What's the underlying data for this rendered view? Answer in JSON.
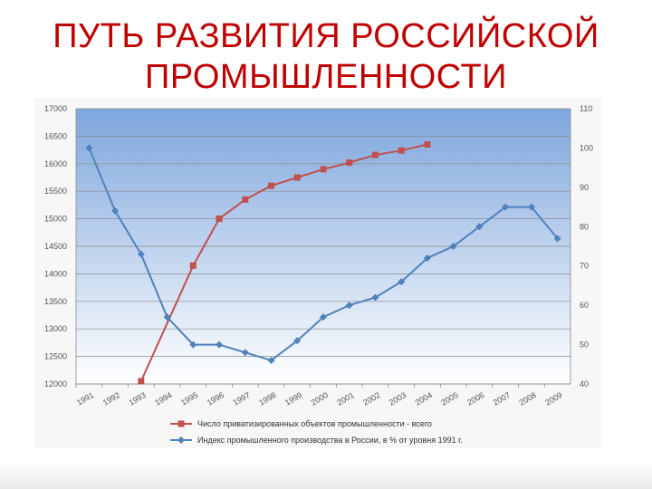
{
  "slide": {
    "title_line1": "ПУТЬ РАЗВИТИЯ РОССИЙСКОЙ",
    "title_line2": "ПРОМЫШЛЕННОСТИ"
  },
  "chart_data": {
    "type": "line",
    "title": "",
    "xlabel": "",
    "ylabel": "",
    "categories": [
      "1991",
      "1992",
      "1993",
      "1994",
      "1995",
      "1996",
      "1997",
      "1998",
      "1999",
      "2000",
      "2001",
      "2002",
      "2003",
      "2004",
      "2005",
      "2006",
      "2007",
      "2008",
      "2009"
    ],
    "y_left": {
      "min": 12000,
      "max": 17000,
      "ticks": [
        12000,
        12500,
        13000,
        13500,
        14000,
        14500,
        15000,
        15500,
        16000,
        16500,
        17000
      ]
    },
    "y_right": {
      "min": 40,
      "max": 110,
      "ticks": [
        40,
        50,
        60,
        70,
        80,
        90,
        100,
        110
      ]
    },
    "grid": true,
    "legend_position": "bottom",
    "series": [
      {
        "name": "Число приватизированных объектов промышленности - всего",
        "axis": "left",
        "color": "#c0504d",
        "marker": "square",
        "values": [
          null,
          null,
          12050,
          null,
          14150,
          15000,
          15350,
          15600,
          15750,
          15900,
          16020,
          16160,
          16240,
          16350,
          null,
          null,
          null,
          null,
          null
        ]
      },
      {
        "name": "Индекс промышленного производства в России, в % от уровня 1991 г.",
        "axis": "right",
        "color": "#4f81bd",
        "marker": "diamond",
        "values": [
          100,
          84,
          73,
          57,
          50,
          50,
          48,
          46,
          51,
          57,
          60,
          62,
          66,
          72,
          75,
          80,
          85,
          85,
          77
        ]
      }
    ]
  }
}
